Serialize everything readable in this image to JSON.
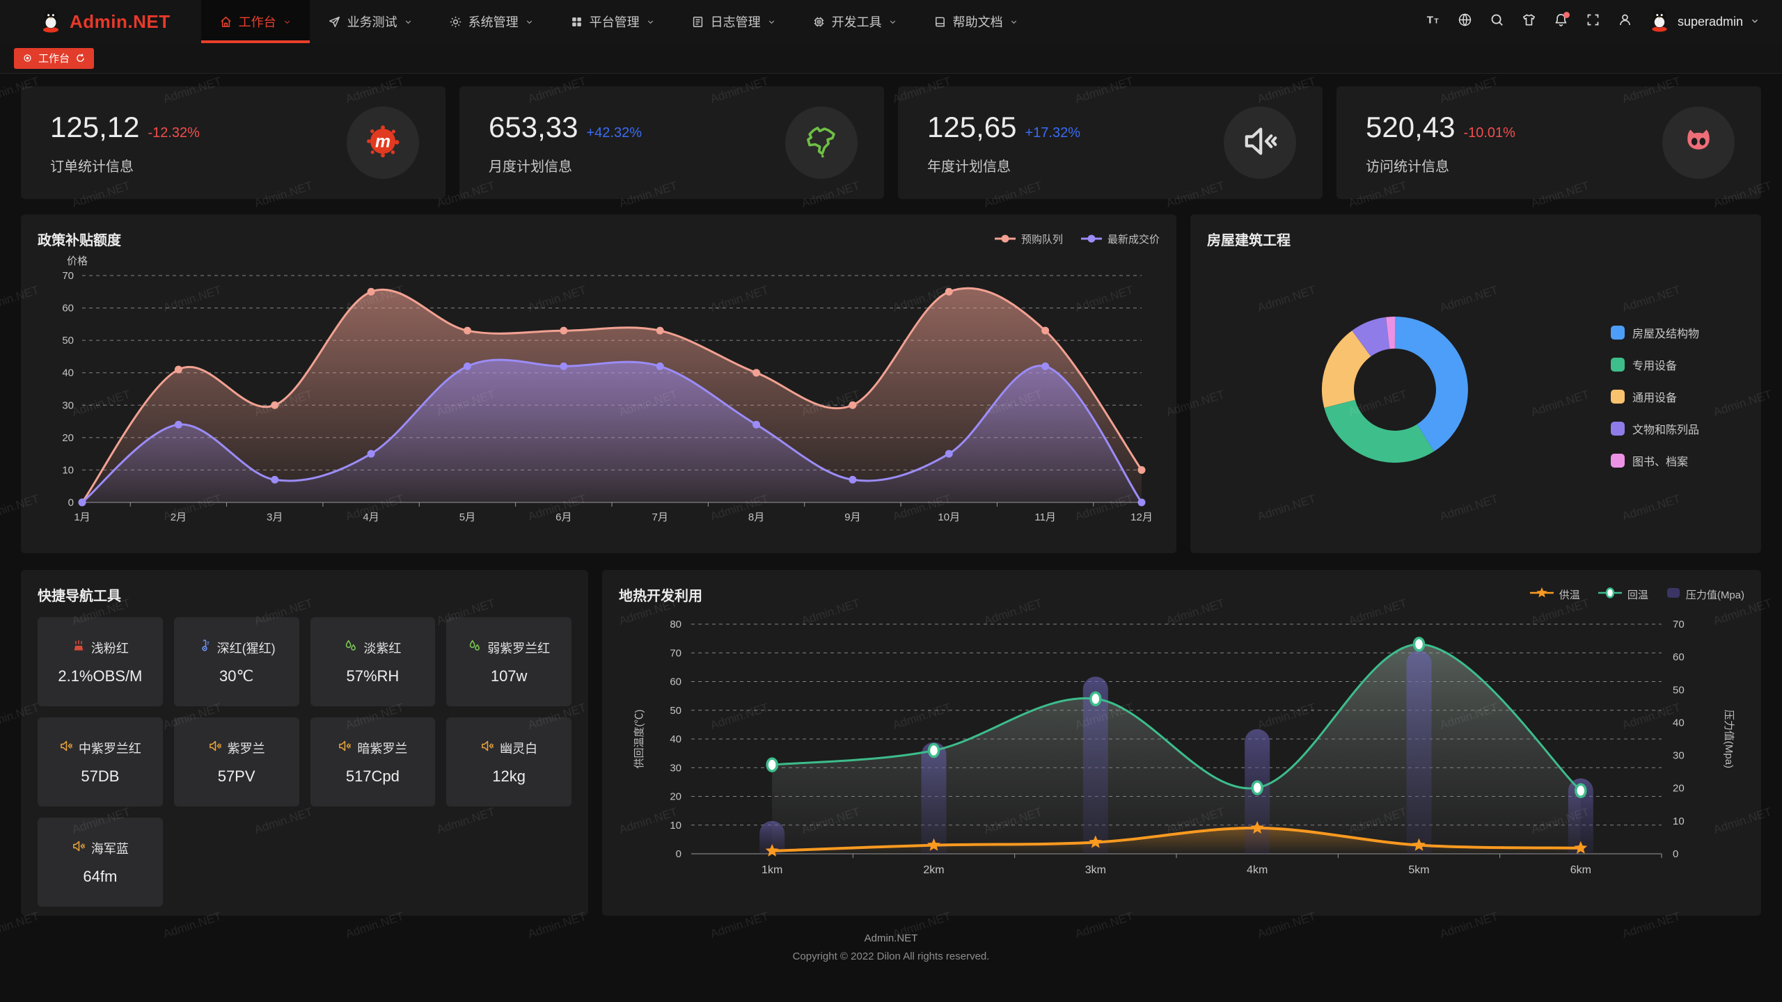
{
  "app": {
    "title": "Admin.NET",
    "watermark": "Admin.NET"
  },
  "nav": {
    "items": [
      {
        "label": "工作台",
        "icon": "home-icon",
        "active": true
      },
      {
        "label": "业务测试",
        "icon": "send-icon",
        "active": false
      },
      {
        "label": "系统管理",
        "icon": "gear-icon",
        "active": false
      },
      {
        "label": "平台管理",
        "icon": "grid-icon",
        "active": false
      },
      {
        "label": "日志管理",
        "icon": "log-icon",
        "active": false
      },
      {
        "label": "开发工具",
        "icon": "chip-icon",
        "active": false
      },
      {
        "label": "帮助文档",
        "icon": "book-icon",
        "active": false
      }
    ],
    "actions": [
      {
        "icon": "font-size-icon",
        "badge": false
      },
      {
        "icon": "language-icon",
        "badge": false
      },
      {
        "icon": "search-icon",
        "badge": false
      },
      {
        "icon": "theme-icon",
        "badge": false
      },
      {
        "icon": "bell-icon",
        "badge": true
      },
      {
        "icon": "fullscreen-icon",
        "badge": false
      },
      {
        "icon": "person-icon",
        "badge": false
      }
    ],
    "user": "superadmin"
  },
  "tabbar": {
    "active_tab": "工作台"
  },
  "stats": [
    {
      "value": "125,12",
      "delta": "-12.32%",
      "trend": "down",
      "label": "订单统计信息",
      "icon": "meetup-icon"
    },
    {
      "value": "653,33",
      "delta": "+42.32%",
      "trend": "up",
      "label": "月度计划信息",
      "icon": "china-map-icon"
    },
    {
      "value": "125,65",
      "delta": "+17.32%",
      "trend": "up",
      "label": "年度计划信息",
      "icon": "speaker-icon"
    },
    {
      "value": "520,43",
      "delta": "-10.01%",
      "trend": "down",
      "label": "访问统计信息",
      "icon": "cat-icon"
    }
  ],
  "quick_nav": {
    "title": "快捷导航工具",
    "items": [
      {
        "icon": "fog-icon",
        "color": "#d84a3a",
        "name": "浅粉红",
        "value": "2.1%OBS/M"
      },
      {
        "icon": "thermometer-icon",
        "color": "#6e95f5",
        "name": "深红(猩红)",
        "value": "30℃"
      },
      {
        "icon": "humidity-icon",
        "color": "#7cc855",
        "name": "淡紫红",
        "value": "57%RH"
      },
      {
        "icon": "humidity-icon",
        "color": "#7cc855",
        "name": "弱紫罗兰红",
        "value": "107w"
      },
      {
        "icon": "speaker-icon",
        "color": "#e6a23c",
        "name": "中紫罗兰红",
        "value": "57DB"
      },
      {
        "icon": "speaker-icon",
        "color": "#e6a23c",
        "name": "紫罗兰",
        "value": "57PV"
      },
      {
        "icon": "speaker-icon",
        "color": "#e6a23c",
        "name": "暗紫罗兰",
        "value": "517Cpd"
      },
      {
        "icon": "speaker-icon",
        "color": "#e6a23c",
        "name": "幽灵白",
        "value": "12kg"
      },
      {
        "icon": "speaker-icon",
        "color": "#e6a23c",
        "name": "海军蓝",
        "value": "64fm"
      }
    ]
  },
  "footer": {
    "line1": "Admin.NET",
    "line2": "Copyright © 2022 Dilon All rights reserved."
  },
  "chart_data": [
    {
      "id": "subsidy",
      "type": "area",
      "title": "政策补贴额度",
      "ylabel": "价格",
      "xlabel": "",
      "ylim": [
        0,
        70
      ],
      "grid": "dashed",
      "legend_position": "top-right",
      "categories": [
        "1月",
        "2月",
        "3月",
        "4月",
        "5月",
        "6月",
        "7月",
        "8月",
        "9月",
        "10月",
        "11月",
        "12月"
      ],
      "series": [
        {
          "name": "预购队列",
          "color": "#f2a192",
          "values": [
            0,
            41,
            30,
            65,
            53,
            53,
            53,
            40,
            30,
            65,
            53,
            10
          ]
        },
        {
          "name": "最新成交价",
          "color": "#9b8cf7",
          "values": [
            0,
            24,
            7,
            15,
            42,
            42,
            42,
            24,
            7,
            15,
            42,
            0
          ]
        }
      ]
    },
    {
      "id": "housing",
      "type": "pie",
      "title": "房屋建筑工程",
      "legend_position": "right",
      "slices": [
        {
          "label": "房屋及结构物",
          "value": 41,
          "color": "#4d9ef8"
        },
        {
          "label": "专用设备",
          "value": 30,
          "color": "#3ebe8b"
        },
        {
          "label": "通用设备",
          "value": 19,
          "color": "#f9c26e"
        },
        {
          "label": "文物和陈列品",
          "value": 8,
          "color": "#8f7ce9"
        },
        {
          "label": "图书、档案",
          "value": 2,
          "color": "#ec92e5"
        }
      ]
    },
    {
      "id": "geothermal",
      "type": "mixed",
      "title": "地热开发利用",
      "categories": [
        "1km",
        "2km",
        "3km",
        "4km",
        "5km",
        "6km"
      ],
      "left_axis": {
        "label": "供回温度(℃)",
        "range": [
          0,
          80
        ]
      },
      "right_axis": {
        "label": "压力值(Mpa)",
        "range": [
          0,
          70
        ]
      },
      "series": [
        {
          "name": "供温",
          "type": "line",
          "marker": "star",
          "axis": "left",
          "color": "#fa9a20",
          "values": [
            1,
            3,
            4,
            9,
            3,
            2
          ]
        },
        {
          "name": "回温",
          "type": "line",
          "marker": "circle",
          "axis": "left",
          "color": "#3dbd8c",
          "values": [
            31,
            36,
            54,
            23,
            73,
            22
          ]
        },
        {
          "name": "压力值(Mpa)",
          "type": "bar",
          "marker": "rect",
          "axis": "right",
          "color": "#47417e",
          "values": [
            10,
            34,
            54,
            38,
            62,
            23
          ]
        }
      ]
    }
  ]
}
